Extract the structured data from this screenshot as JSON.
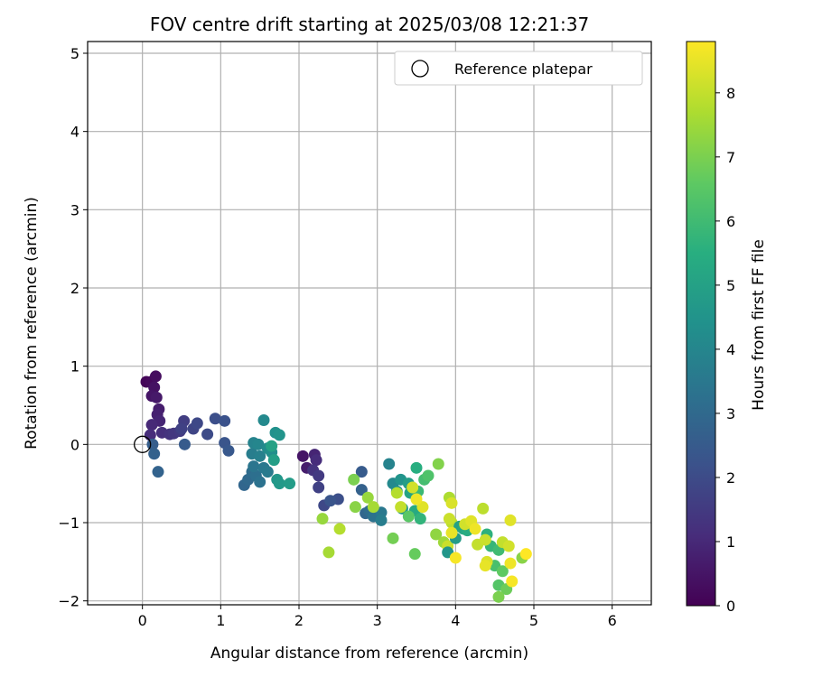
{
  "chart_data": {
    "type": "scatter",
    "title": "FOV centre drift starting at 2025/03/08 12:21:37",
    "xlabel": "Angular distance from reference (arcmin)",
    "ylabel": "Rotation from reference (arcmin)",
    "xlim": [
      -0.7,
      6.5
    ],
    "ylim": [
      -2.05,
      5.15
    ],
    "xticks": [
      0,
      1,
      2,
      3,
      4,
      5,
      6
    ],
    "yticks": [
      -2,
      -1,
      0,
      1,
      2,
      3,
      4,
      5
    ],
    "grid": true,
    "legend": {
      "placement": "top-right",
      "entries": [
        {
          "label": "Reference platepar",
          "marker": "hollow-circle"
        }
      ]
    },
    "reference_point": {
      "x": 0,
      "y": 0
    },
    "colorbar": {
      "label": "Hours from first FF file",
      "colormap": "viridis",
      "range": [
        0,
        8.8
      ],
      "ticks": [
        0,
        1,
        2,
        3,
        4,
        5,
        6,
        7,
        8
      ]
    },
    "points": [
      {
        "x": 0.05,
        "y": 0.8,
        "t": 0.1
      },
      {
        "x": 0.11,
        "y": 0.8,
        "t": 0.2
      },
      {
        "x": 0.17,
        "y": 0.87,
        "t": 0.3
      },
      {
        "x": 0.15,
        "y": 0.73,
        "t": 0.4
      },
      {
        "x": 0.12,
        "y": 0.62,
        "t": 0.5
      },
      {
        "x": 0.18,
        "y": 0.6,
        "t": 0.6
      },
      {
        "x": 0.21,
        "y": 0.45,
        "t": 0.7
      },
      {
        "x": 0.19,
        "y": 0.38,
        "t": 0.8
      },
      {
        "x": 0.22,
        "y": 0.3,
        "t": 0.9
      },
      {
        "x": 0.12,
        "y": 0.25,
        "t": 1.0
      },
      {
        "x": 0.1,
        "y": 0.12,
        "t": 1.1
      },
      {
        "x": 0.25,
        "y": 0.15,
        "t": 1.2
      },
      {
        "x": 0.35,
        "y": 0.13,
        "t": 1.3
      },
      {
        "x": 0.4,
        "y": 0.14,
        "t": 1.4
      },
      {
        "x": 0.48,
        "y": 0.17,
        "t": 1.5
      },
      {
        "x": 0.53,
        "y": 0.3,
        "t": 1.6
      },
      {
        "x": 0.5,
        "y": 0.2,
        "t": 1.7
      },
      {
        "x": 0.65,
        "y": 0.2,
        "t": 1.8
      },
      {
        "x": 0.7,
        "y": 0.27,
        "t": 1.9
      },
      {
        "x": 0.83,
        "y": 0.13,
        "t": 2.0
      },
      {
        "x": 0.93,
        "y": 0.33,
        "t": 2.1
      },
      {
        "x": 1.05,
        "y": 0.3,
        "t": 2.2
      },
      {
        "x": 1.05,
        "y": 0.02,
        "t": 2.3
      },
      {
        "x": 1.1,
        "y": -0.08,
        "t": 2.4
      },
      {
        "x": 0.54,
        "y": 0.0,
        "t": 2.5
      },
      {
        "x": 0.13,
        "y": 0.0,
        "t": 2.6
      },
      {
        "x": 0.15,
        "y": -0.12,
        "t": 2.7
      },
      {
        "x": 0.2,
        "y": -0.35,
        "t": 2.8
      },
      {
        "x": 1.3,
        "y": -0.52,
        "t": 2.9
      },
      {
        "x": 1.35,
        "y": -0.45,
        "t": 3.0
      },
      {
        "x": 1.4,
        "y": -0.35,
        "t": 3.1
      },
      {
        "x": 1.45,
        "y": -0.4,
        "t": 3.2
      },
      {
        "x": 1.5,
        "y": -0.48,
        "t": 3.3
      },
      {
        "x": 1.42,
        "y": -0.28,
        "t": 3.4
      },
      {
        "x": 1.55,
        "y": -0.3,
        "t": 3.5
      },
      {
        "x": 1.6,
        "y": -0.35,
        "t": 3.6
      },
      {
        "x": 1.4,
        "y": -0.12,
        "t": 3.7
      },
      {
        "x": 1.5,
        "y": -0.15,
        "t": 3.8
      },
      {
        "x": 1.42,
        "y": 0.02,
        "t": 3.9
      },
      {
        "x": 1.48,
        "y": 0.0,
        "t": 4.0
      },
      {
        "x": 1.55,
        "y": 0.31,
        "t": 4.1
      },
      {
        "x": 1.6,
        "y": -0.05,
        "t": 4.2
      },
      {
        "x": 1.65,
        "y": -0.1,
        "t": 4.3
      },
      {
        "x": 1.7,
        "y": 0.15,
        "t": 4.4
      },
      {
        "x": 1.75,
        "y": 0.12,
        "t": 4.5
      },
      {
        "x": 1.72,
        "y": -0.45,
        "t": 4.6
      },
      {
        "x": 1.75,
        "y": -0.5,
        "t": 4.7
      },
      {
        "x": 1.88,
        "y": -0.5,
        "t": 4.8
      },
      {
        "x": 1.68,
        "y": -0.2,
        "t": 4.9
      },
      {
        "x": 1.65,
        "y": -0.02,
        "t": 5.0
      },
      {
        "x": 2.05,
        "y": -0.15,
        "t": 0.5
      },
      {
        "x": 2.1,
        "y": -0.3,
        "t": 0.7
      },
      {
        "x": 2.2,
        "y": -0.13,
        "t": 0.9
      },
      {
        "x": 2.22,
        "y": -0.2,
        "t": 1.1
      },
      {
        "x": 2.18,
        "y": -0.33,
        "t": 1.3
      },
      {
        "x": 2.25,
        "y": -0.4,
        "t": 1.5
      },
      {
        "x": 2.25,
        "y": -0.55,
        "t": 1.7
      },
      {
        "x": 2.32,
        "y": -0.78,
        "t": 1.9
      },
      {
        "x": 2.5,
        "y": -0.7,
        "t": 2.1
      },
      {
        "x": 2.4,
        "y": -0.72,
        "t": 2.3
      },
      {
        "x": 2.8,
        "y": -0.35,
        "t": 2.5
      },
      {
        "x": 2.8,
        "y": -0.58,
        "t": 2.7
      },
      {
        "x": 2.85,
        "y": -0.88,
        "t": 2.9
      },
      {
        "x": 2.9,
        "y": -0.85,
        "t": 3.1
      },
      {
        "x": 2.95,
        "y": -0.92,
        "t": 3.3
      },
      {
        "x": 3.05,
        "y": -0.87,
        "t": 3.5
      },
      {
        "x": 3.05,
        "y": -0.97,
        "t": 3.7
      },
      {
        "x": 3.15,
        "y": -0.25,
        "t": 3.9
      },
      {
        "x": 3.2,
        "y": -0.5,
        "t": 4.1
      },
      {
        "x": 3.25,
        "y": -0.6,
        "t": 4.3
      },
      {
        "x": 3.3,
        "y": -0.45,
        "t": 4.5
      },
      {
        "x": 3.32,
        "y": -0.82,
        "t": 4.7
      },
      {
        "x": 3.4,
        "y": -0.5,
        "t": 4.9
      },
      {
        "x": 3.42,
        "y": -0.62,
        "t": 5.1
      },
      {
        "x": 3.48,
        "y": -0.85,
        "t": 5.3
      },
      {
        "x": 3.5,
        "y": -0.3,
        "t": 5.5
      },
      {
        "x": 3.55,
        "y": -0.95,
        "t": 5.7
      },
      {
        "x": 3.52,
        "y": -0.6,
        "t": 5.9
      },
      {
        "x": 3.6,
        "y": -0.45,
        "t": 6.1
      },
      {
        "x": 3.65,
        "y": -0.4,
        "t": 6.3
      },
      {
        "x": 3.4,
        "y": -0.92,
        "t": 6.5
      },
      {
        "x": 3.48,
        "y": -1.4,
        "t": 6.7
      },
      {
        "x": 3.2,
        "y": -1.2,
        "t": 6.9
      },
      {
        "x": 3.78,
        "y": -0.25,
        "t": 7.1
      },
      {
        "x": 3.75,
        "y": -1.15,
        "t": 7.3
      },
      {
        "x": 3.85,
        "y": -1.25,
        "t": 7.5
      },
      {
        "x": 3.92,
        "y": -0.68,
        "t": 7.7
      },
      {
        "x": 3.95,
        "y": -1.0,
        "t": 7.9
      },
      {
        "x": 3.9,
        "y": -1.3,
        "t": 8.1
      },
      {
        "x": 3.9,
        "y": -1.38,
        "t": 4.6
      },
      {
        "x": 4.0,
        "y": -1.2,
        "t": 4.8
      },
      {
        "x": 4.05,
        "y": -1.05,
        "t": 5.0
      },
      {
        "x": 4.1,
        "y": -1.08,
        "t": 5.2
      },
      {
        "x": 4.15,
        "y": -1.1,
        "t": 5.4
      },
      {
        "x": 4.4,
        "y": -1.15,
        "t": 5.6
      },
      {
        "x": 4.45,
        "y": -1.3,
        "t": 5.8
      },
      {
        "x": 4.55,
        "y": -1.35,
        "t": 6.0
      },
      {
        "x": 4.5,
        "y": -1.55,
        "t": 6.2
      },
      {
        "x": 4.55,
        "y": -1.8,
        "t": 6.4
      },
      {
        "x": 4.6,
        "y": -1.62,
        "t": 6.6
      },
      {
        "x": 4.65,
        "y": -1.85,
        "t": 6.8
      },
      {
        "x": 4.55,
        "y": -1.95,
        "t": 7.0
      },
      {
        "x": 4.85,
        "y": -1.45,
        "t": 7.2
      },
      {
        "x": 2.3,
        "y": -0.95,
        "t": 7.4
      },
      {
        "x": 2.38,
        "y": -1.38,
        "t": 7.6
      },
      {
        "x": 2.52,
        "y": -1.08,
        "t": 7.8
      },
      {
        "x": 2.7,
        "y": -0.45,
        "t": 7.0
      },
      {
        "x": 2.72,
        "y": -0.8,
        "t": 7.2
      },
      {
        "x": 2.88,
        "y": -0.68,
        "t": 7.4
      },
      {
        "x": 2.95,
        "y": -0.8,
        "t": 7.6
      },
      {
        "x": 3.25,
        "y": -0.62,
        "t": 7.8
      },
      {
        "x": 3.3,
        "y": -0.8,
        "t": 8.0
      },
      {
        "x": 3.45,
        "y": -0.55,
        "t": 8.2
      },
      {
        "x": 3.58,
        "y": -0.8,
        "t": 8.4
      },
      {
        "x": 3.5,
        "y": -0.7,
        "t": 8.6
      },
      {
        "x": 3.92,
        "y": -0.95,
        "t": 8.1
      },
      {
        "x": 3.95,
        "y": -0.75,
        "t": 8.3
      },
      {
        "x": 3.95,
        "y": -1.13,
        "t": 8.5
      },
      {
        "x": 4.0,
        "y": -1.45,
        "t": 8.7
      },
      {
        "x": 4.12,
        "y": -1.02,
        "t": 8.2
      },
      {
        "x": 4.2,
        "y": -0.98,
        "t": 8.4
      },
      {
        "x": 4.25,
        "y": -1.08,
        "t": 8.6
      },
      {
        "x": 4.28,
        "y": -1.28,
        "t": 8.0
      },
      {
        "x": 4.35,
        "y": -0.82,
        "t": 7.9
      },
      {
        "x": 4.38,
        "y": -1.22,
        "t": 8.1
      },
      {
        "x": 4.4,
        "y": -1.5,
        "t": 8.3
      },
      {
        "x": 4.38,
        "y": -1.55,
        "t": 8.5
      },
      {
        "x": 4.6,
        "y": -1.25,
        "t": 8.0
      },
      {
        "x": 4.68,
        "y": -1.3,
        "t": 8.2
      },
      {
        "x": 4.7,
        "y": -0.97,
        "t": 8.4
      },
      {
        "x": 4.7,
        "y": -1.52,
        "t": 8.6
      },
      {
        "x": 4.72,
        "y": -1.75,
        "t": 8.7
      },
      {
        "x": 4.9,
        "y": -1.4,
        "t": 8.8
      }
    ]
  }
}
